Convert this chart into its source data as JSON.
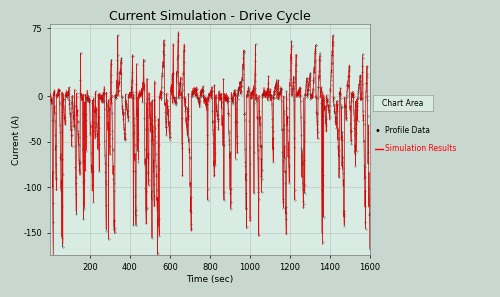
{
  "title": "Current Simulation - Drive Cycle",
  "xlabel": "Time (sec)",
  "ylabel": "Current (A)",
  "xlim": [
    0,
    1600
  ],
  "ylim": [
    -175,
    80
  ],
  "yticks": [
    75,
    0,
    -50,
    -100,
    -150
  ],
  "xticks": [
    200,
    400,
    600,
    800,
    1000,
    1200,
    1400,
    1600
  ],
  "bg_color": "#c8d8d0",
  "plot_bg_color": "#d8ece4",
  "grid_color": "#b0b8b4",
  "profile_color": "black",
  "sim_color": "red",
  "legend_labels": [
    "Profile Data",
    "Simulation Results"
  ],
  "title_fontsize": 9,
  "axis_label_fontsize": 6.5,
  "tick_fontsize": 6,
  "seed": 42,
  "n_points": 1600,
  "chart_area_label": "Chart Area"
}
